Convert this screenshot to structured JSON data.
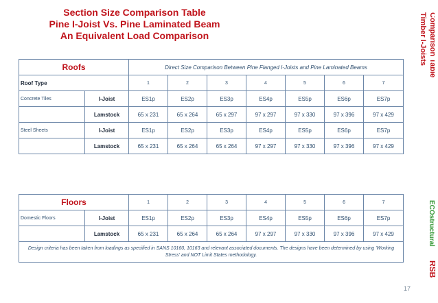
{
  "title": {
    "line1": "Section Size Comparison Table",
    "line2": "Pine I-Joist Vs. Pine Laminated Beam",
    "line3": "An Equivalent Load Comparison"
  },
  "side_title": {
    "line1": "Timber I-Joists",
    "line2": "Comparison Table"
  },
  "colors": {
    "accent_red": "#c0141c",
    "border_blue": "#6b86a8",
    "text_navy": "#2f4f6f",
    "logo_green": "#3a9a3a"
  },
  "logos": {
    "eco": "ECOstructural",
    "rsb": "RSB"
  },
  "page_number": "17",
  "roofs": {
    "section_label": "Roofs",
    "heading": "Direct Size Comparison Between Pine Flanged I-Joists and Pine Laminated Beams",
    "type_label": "Roof Type",
    "columns": [
      "1",
      "2",
      "3",
      "4",
      "5",
      "6",
      "7"
    ],
    "rows": [
      {
        "name": "Concrete Tiles",
        "ijoist_label": "I-Joist",
        "ijoist": [
          "ES1p",
          "ES2p",
          "ES3p",
          "ES4p",
          "ES5p",
          "ES6p",
          "ES7p"
        ],
        "lamstock_label": "Lamstock",
        "lamstock": [
          "65 x 231",
          "65 x 264",
          "65 x 297",
          "97 x 297",
          "97 x 330",
          "97 x 396",
          "97 x 429"
        ]
      },
      {
        "name": "Steel Sheets",
        "ijoist_label": "I-Joist",
        "ijoist": [
          "ES1p",
          "ES2p",
          "ES3p",
          "ES4p",
          "ES5p",
          "ES6p",
          "ES7p"
        ],
        "lamstock_label": "Lamstock",
        "lamstock": [
          "65 x 231",
          "65 x 264",
          "65 x 264",
          "97 x 297",
          "97 x 330",
          "97 x 396",
          "97 x 429"
        ]
      }
    ]
  },
  "floors": {
    "section_label": "Floors",
    "columns": [
      "1",
      "2",
      "3",
      "4",
      "5",
      "6",
      "7"
    ],
    "rows": [
      {
        "name": "Domestic Floors",
        "ijoist_label": "I-Joist",
        "ijoist": [
          "ES1p",
          "ES2p",
          "ES3p",
          "ES4p",
          "ES5p",
          "ES6p",
          "ES7p"
        ],
        "lamstock_label": "Lamstock",
        "lamstock": [
          "65 x 231",
          "65 x 264",
          "65 x 264",
          "97 x 297",
          "97 x 330",
          "97 x 396",
          "97 x 429"
        ]
      }
    ],
    "note": "Design criteria has been taken from loadings as specified in SANS 10160, 10163 and relevant associated documents. The designs have been determined by using 'Working Stress' and NOT Limit States methodology."
  }
}
